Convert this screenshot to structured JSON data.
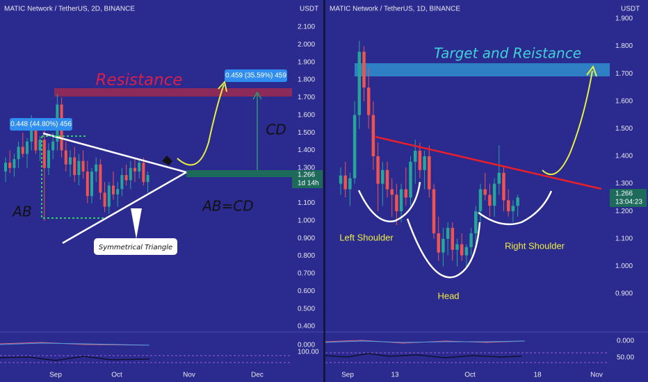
{
  "panels": [
    {
      "header": "MATIC Network / TetherUS, 2D, BINANCE",
      "unit": "USDT",
      "yticks": [
        {
          "value": 2.1,
          "label": "2.100"
        },
        {
          "value": 2.0,
          "label": "2.000"
        },
        {
          "value": 1.9,
          "label": "1.900"
        },
        {
          "value": 1.8,
          "label": "1.800"
        },
        {
          "value": 1.7,
          "label": "1.700"
        },
        {
          "value": 1.6,
          "label": "1.600"
        },
        {
          "value": 1.5,
          "label": "1.500"
        },
        {
          "value": 1.4,
          "label": "1.400"
        },
        {
          "value": 1.3,
          "label": "1.300"
        },
        {
          "value": 1.1,
          "label": "1.100"
        },
        {
          "value": 1.0,
          "label": "1.000"
        },
        {
          "value": 0.9,
          "label": "0.900"
        },
        {
          "value": 0.8,
          "label": "0.800"
        },
        {
          "value": 0.7,
          "label": "0.700"
        },
        {
          "value": 0.6,
          "label": "0.600"
        },
        {
          "value": 0.5,
          "label": "0.500"
        },
        {
          "value": 0.4,
          "label": "0.400"
        }
      ],
      "xlabels": [
        "Sep",
        "Oct",
        "Nov",
        "Dec"
      ],
      "indicator_labels": [
        "0.000",
        "100.00"
      ],
      "price_tag": {
        "price": "1.266",
        "countdown": "1d 14h"
      },
      "annotations": {
        "resistance": "Resistance",
        "target_box": "0.459 (35.59%) 459",
        "ab_box": "0.448 (44.80%) 456",
        "cd": "CD",
        "ab": "AB",
        "abcd": "AB=CD",
        "triangle": "Symmetrical Triangle"
      },
      "candles": [
        [
          1.28,
          1.36,
          1.22,
          1.33
        ],
        [
          1.33,
          1.4,
          1.27,
          1.3
        ],
        [
          1.3,
          1.38,
          1.25,
          1.35
        ],
        [
          1.35,
          1.45,
          1.3,
          1.42
        ],
        [
          1.42,
          1.5,
          1.36,
          1.38
        ],
        [
          1.38,
          1.47,
          1.3,
          1.45
        ],
        [
          1.45,
          1.6,
          1.4,
          1.55
        ],
        [
          1.55,
          1.58,
          1.38,
          1.4
        ],
        [
          1.4,
          1.48,
          1.34,
          1.46
        ],
        [
          1.46,
          1.52,
          1.0,
          1.3
        ],
        [
          1.3,
          1.44,
          1.26,
          1.4
        ],
        [
          1.4,
          1.5,
          1.35,
          1.45
        ],
        [
          1.45,
          1.72,
          1.4,
          1.66
        ],
        [
          1.66,
          1.7,
          1.36,
          1.4
        ],
        [
          1.4,
          1.45,
          1.28,
          1.32
        ],
        [
          1.32,
          1.4,
          1.25,
          1.36
        ],
        [
          1.36,
          1.42,
          1.22,
          1.26
        ],
        [
          1.26,
          1.38,
          1.2,
          1.34
        ],
        [
          1.34,
          1.4,
          1.24,
          1.28
        ],
        [
          1.28,
          1.34,
          1.1,
          1.14
        ],
        [
          1.14,
          1.3,
          1.1,
          1.28
        ],
        [
          1.28,
          1.36,
          1.22,
          1.32
        ],
        [
          1.32,
          1.35,
          1.12,
          1.16
        ],
        [
          1.16,
          1.22,
          1.05,
          1.08
        ],
        [
          1.08,
          1.22,
          1.04,
          1.2
        ],
        [
          1.2,
          1.28,
          1.12,
          1.15
        ],
        [
          1.15,
          1.22,
          1.08,
          1.18
        ],
        [
          1.18,
          1.3,
          1.14,
          1.26
        ],
        [
          1.26,
          1.32,
          1.2,
          1.23
        ],
        [
          1.23,
          1.34,
          1.18,
          1.3
        ],
        [
          1.3,
          1.36,
          1.22,
          1.28
        ],
        [
          1.28,
          1.35,
          1.24,
          1.33
        ],
        [
          1.33,
          1.36,
          1.2,
          1.22
        ],
        [
          1.22,
          1.28,
          1.16,
          1.26
        ]
      ]
    },
    {
      "header": "MATIC Network / TetherUS, 1D, BINANCE",
      "unit": "USDT",
      "yticks": [
        {
          "value": 1.9,
          "label": "1.900"
        },
        {
          "value": 1.8,
          "label": "1.800"
        },
        {
          "value": 1.7,
          "label": "1.700"
        },
        {
          "value": 1.6,
          "label": "1.600"
        },
        {
          "value": 1.5,
          "label": "1.500"
        },
        {
          "value": 1.4,
          "label": "1.400"
        },
        {
          "value": 1.3,
          "label": "1.300"
        },
        {
          "value": 1.2,
          "label": "1.200"
        },
        {
          "value": 1.1,
          "label": "1.100"
        },
        {
          "value": 1.0,
          "label": "1.000"
        },
        {
          "value": 0.9,
          "label": "0.900"
        }
      ],
      "xlabels": [
        "Sep",
        "13",
        "Oct",
        "18",
        "Nov"
      ],
      "indicator_labels": [
        "0.000",
        "50.00"
      ],
      "price_tag": {
        "price": "1.266",
        "countdown": "13:04:23"
      },
      "annotations": {
        "target": "Target and Reistance",
        "left_shoulder": "Left Shoulder",
        "head": "Head",
        "right_shoulder": "Right Shoulder"
      },
      "candles": [
        [
          1.3,
          1.36,
          1.26,
          1.33
        ],
        [
          1.33,
          1.38,
          1.25,
          1.28
        ],
        [
          1.28,
          1.34,
          1.22,
          1.32
        ],
        [
          1.32,
          1.6,
          1.3,
          1.55
        ],
        [
          1.55,
          1.82,
          1.5,
          1.78
        ],
        [
          1.78,
          1.8,
          1.6,
          1.65
        ],
        [
          1.65,
          1.72,
          1.5,
          1.55
        ],
        [
          1.55,
          1.6,
          1.35,
          1.4
        ],
        [
          1.4,
          1.45,
          1.2,
          1.3
        ],
        [
          1.3,
          1.38,
          1.22,
          1.35
        ],
        [
          1.35,
          1.38,
          1.25,
          1.28
        ],
        [
          1.28,
          1.32,
          1.18,
          1.26
        ],
        [
          1.26,
          1.3,
          1.15,
          1.2
        ],
        [
          1.2,
          1.3,
          1.16,
          1.28
        ],
        [
          1.28,
          1.36,
          1.22,
          1.25
        ],
        [
          1.25,
          1.4,
          1.22,
          1.38
        ],
        [
          1.38,
          1.46,
          1.3,
          1.42
        ],
        [
          1.42,
          1.45,
          1.32,
          1.35
        ],
        [
          1.35,
          1.42,
          1.28,
          1.4
        ],
        [
          1.4,
          1.44,
          1.25,
          1.28
        ],
        [
          1.28,
          1.3,
          1.1,
          1.12
        ],
        [
          1.12,
          1.18,
          1.02,
          1.05
        ],
        [
          1.05,
          1.14,
          1.0,
          1.1
        ],
        [
          1.1,
          1.16,
          1.04,
          1.14
        ],
        [
          1.14,
          1.16,
          1.02,
          1.06
        ],
        [
          1.06,
          1.1,
          1.0,
          1.08
        ],
        [
          1.08,
          1.12,
          1.02,
          1.04
        ],
        [
          1.04,
          1.08,
          0.99,
          1.07
        ],
        [
          1.07,
          1.14,
          1.04,
          1.12
        ],
        [
          1.12,
          1.22,
          1.08,
          1.2
        ],
        [
          1.2,
          1.3,
          1.16,
          1.28
        ],
        [
          1.28,
          1.34,
          1.24,
          1.26
        ],
        [
          1.26,
          1.3,
          1.18,
          1.22
        ],
        [
          1.22,
          1.32,
          1.18,
          1.3
        ],
        [
          1.3,
          1.44,
          1.26,
          1.34
        ],
        [
          1.34,
          1.36,
          1.2,
          1.24
        ],
        [
          1.24,
          1.28,
          1.18,
          1.2
        ],
        [
          1.2,
          1.24,
          1.16,
          1.22
        ],
        [
          1.22,
          1.26,
          1.18,
          1.25
        ]
      ]
    }
  ]
}
